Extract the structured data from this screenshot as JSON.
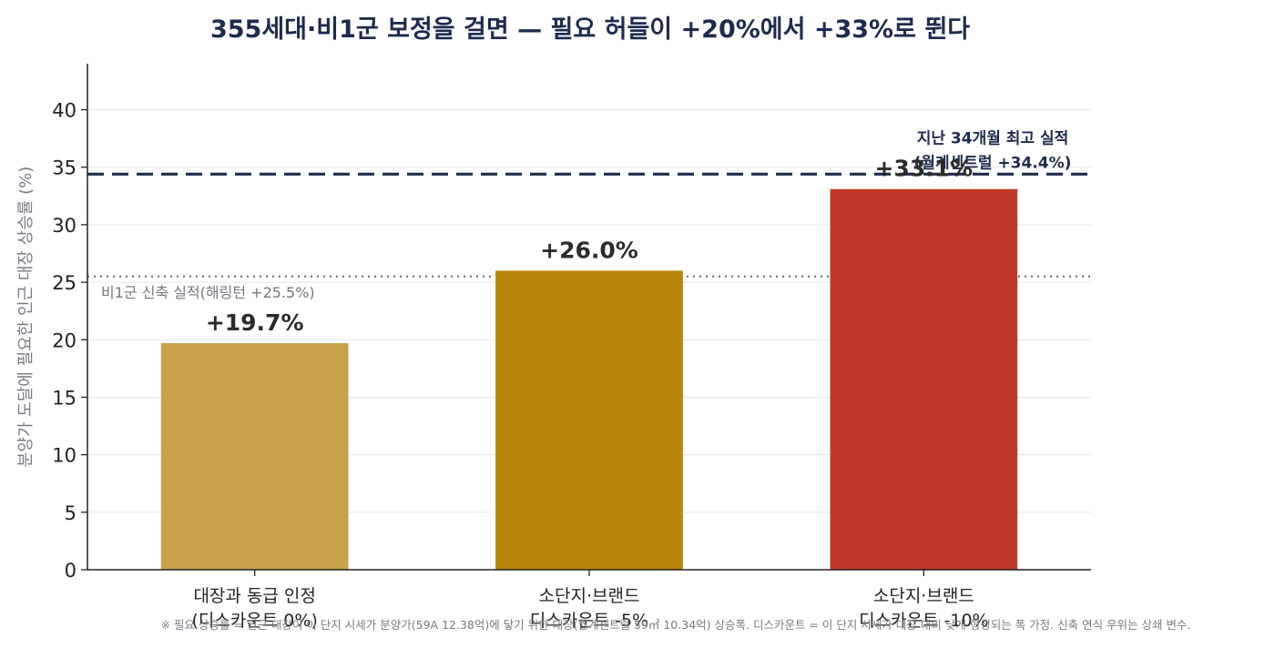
{
  "chart_data": {
    "type": "bar",
    "title": "355세대·비1군 보정을 걸면 — 필요 허들이 +20%에서 +33%로 뛴다",
    "ylabel": "분양가 도달에 필요한 인근 대장 상승률 (%)",
    "ylim": [
      0,
      44
    ],
    "yticks": [
      0,
      5,
      10,
      15,
      20,
      25,
      30,
      35,
      40
    ],
    "grid": "horizontal",
    "categories": [
      [
        "대장과 동급 인정",
        "(디스카운트 0%)"
      ],
      [
        "소단지·브랜드",
        "디스카운트 -5%"
      ],
      [
        "소단지·브랜드",
        "디스카운트 -10%"
      ]
    ],
    "values": [
      19.7,
      26.0,
      33.1
    ],
    "value_labels": [
      "+19.7%",
      "+26.0%",
      "+33.1%"
    ],
    "colors": [
      "#c9a24b",
      "#b8860b",
      "#c0392b"
    ],
    "reference_lines": [
      {
        "value": 25.5,
        "style": "dotted",
        "color": "#777777",
        "label": [
          "비1군 신축 실적(해링턴 +25.5%)"
        ]
      },
      {
        "value": 34.4,
        "style": "dashed",
        "color": "#1f2b4d",
        "label": [
          "지난 34개월 최고 실적",
          "(월계센트럴 +34.4%)"
        ]
      }
    ],
    "footnote": "※ 필요 상승률 = 인근 대장이 이 단지 시세가 분양가(59A 12.38억)에 닿기 위한 대장(월계센트럴 59㎡ 10.34억) 상승폭. 디스카운트 = 이 단지 시세가 대장 대비 낮게 형성되는 폭 가정. 신축 연식 우위는 상쇄 변수."
  }
}
